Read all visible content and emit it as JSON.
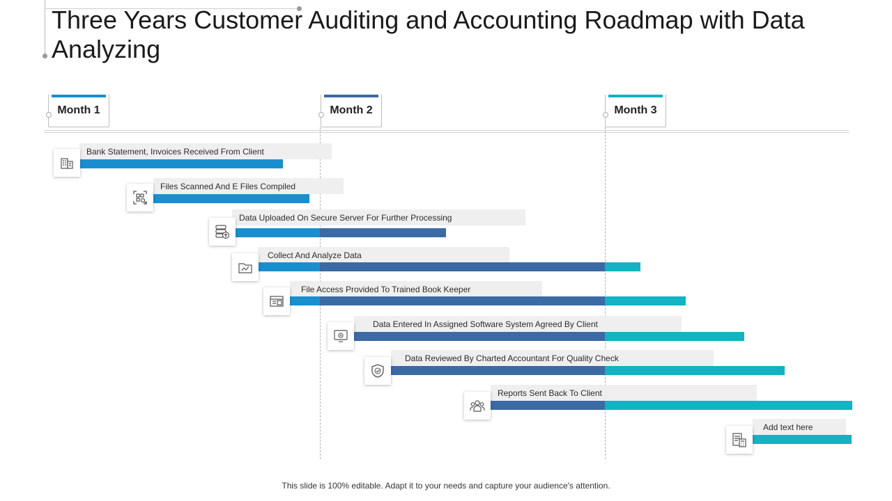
{
  "title": "Three Years Customer Auditing and Accounting Roadmap with Data Analyzing",
  "months": [
    {
      "label": "Month 1",
      "color": "#1a8fd0"
    },
    {
      "label": "Month 2",
      "color": "#3b6aa5"
    },
    {
      "label": "Month 3",
      "color": "#12b3c2"
    }
  ],
  "tasks": [
    {
      "label": "Bank Statement, Invoices Received From Client",
      "icon": "bank-building-icon"
    },
    {
      "label": "Files Scanned And E Files Compiled",
      "icon": "qr-scan-icon"
    },
    {
      "label": "Data Uploaded On Secure Server For Further Processing",
      "icon": "server-upload-icon"
    },
    {
      "label": "Collect And Analyze  Data",
      "icon": "data-folder-icon"
    },
    {
      "label": "File Access Provided To Trained Book Keeper",
      "icon": "file-access-icon"
    },
    {
      "label": "Data Entered In Assigned Software System Agreed By Client",
      "icon": "software-settings-icon"
    },
    {
      "label": "Data Reviewed By Charted Accountant For Quality Check",
      "icon": "shield-check-icon"
    },
    {
      "label": "Reports Sent Back To Client",
      "icon": "team-icon"
    },
    {
      "label": "Add text here",
      "icon": "document-calculator-icon"
    }
  ],
  "footer": "This slide is 100% editable. Adapt it to your needs and capture your audience's attention."
}
